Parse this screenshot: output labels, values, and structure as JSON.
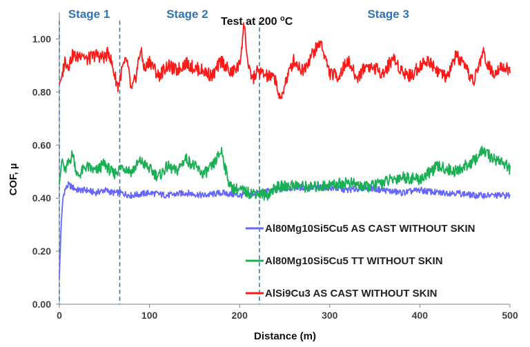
{
  "chart_data": {
    "type": "line",
    "title": "Test at 200 °C",
    "title_text": "Test at 200 ",
    "title_superscript": "o",
    "title_unit": "C",
    "xlabel": "Distance (m)",
    "ylabel": "COF, µ",
    "xlim": [
      0,
      500
    ],
    "ylim": [
      0,
      1.1
    ],
    "x_ticks": [
      0,
      100,
      200,
      300,
      400,
      500
    ],
    "x_tick_labels": [
      "0",
      "100",
      "200",
      "300",
      "400",
      "500"
    ],
    "y_ticks": [
      0,
      0.2,
      0.4,
      0.6,
      0.8,
      1.0
    ],
    "y_tick_labels": [
      "0.00",
      "0.20",
      "0.40",
      "0.60",
      "0.80",
      "1.00"
    ],
    "grid": false,
    "legend_position": "lower-right",
    "stage_boundaries": [
      0,
      67,
      222
    ],
    "stage_labels": [
      {
        "text": "Stage 1",
        "x": 33
      },
      {
        "text": "Stage 2",
        "x": 142
      },
      {
        "text": "Stage 3",
        "x": 365
      }
    ],
    "stage_color": "#2e74b5",
    "series": [
      {
        "name": "Al80Mg10Si5Cu5 AS CAST WITHOUT SKIN",
        "color": "#6666ff",
        "x": [
          0,
          2,
          4,
          6,
          10,
          15,
          20,
          30,
          40,
          50,
          60,
          67,
          80,
          100,
          120,
          140,
          160,
          180,
          200,
          220,
          240,
          260,
          280,
          300,
          320,
          340,
          360,
          380,
          400,
          420,
          440,
          460,
          480,
          500
        ],
        "y": [
          0.1,
          0.3,
          0.4,
          0.43,
          0.45,
          0.44,
          0.43,
          0.43,
          0.42,
          0.43,
          0.42,
          0.42,
          0.41,
          0.42,
          0.41,
          0.42,
          0.41,
          0.42,
          0.41,
          0.42,
          0.43,
          0.44,
          0.44,
          0.44,
          0.43,
          0.44,
          0.43,
          0.42,
          0.43,
          0.42,
          0.42,
          0.41,
          0.41,
          0.41
        ]
      },
      {
        "name": "Al80Mg10Si5Cu5 TT WITHOUT SKIN",
        "color": "#1aaf54",
        "x": [
          0,
          3,
          6,
          10,
          15,
          20,
          30,
          40,
          50,
          60,
          70,
          80,
          90,
          100,
          110,
          120,
          130,
          140,
          150,
          160,
          170,
          180,
          185,
          190,
          200,
          210,
          220,
          230,
          240,
          260,
          280,
          300,
          320,
          340,
          360,
          380,
          400,
          420,
          440,
          460,
          470,
          480,
          490,
          500
        ],
        "y": [
          0.45,
          0.55,
          0.5,
          0.53,
          0.57,
          0.48,
          0.52,
          0.5,
          0.53,
          0.49,
          0.52,
          0.5,
          0.54,
          0.51,
          0.48,
          0.52,
          0.5,
          0.55,
          0.52,
          0.49,
          0.52,
          0.58,
          0.5,
          0.44,
          0.43,
          0.42,
          0.42,
          0.41,
          0.44,
          0.45,
          0.44,
          0.45,
          0.46,
          0.44,
          0.46,
          0.48,
          0.47,
          0.52,
          0.5,
          0.54,
          0.58,
          0.55,
          0.54,
          0.51
        ]
      },
      {
        "name": "AlSi9Cu3 AS CAST WITHOUT SKIN",
        "color": "#ff1a1a",
        "x": [
          0,
          3,
          6,
          10,
          15,
          20,
          25,
          30,
          40,
          50,
          55,
          60,
          65,
          70,
          75,
          80,
          85,
          90,
          95,
          100,
          110,
          120,
          130,
          140,
          150,
          160,
          170,
          180,
          190,
          200,
          205,
          210,
          215,
          220,
          230,
          240,
          245,
          250,
          260,
          270,
          280,
          290,
          300,
          310,
          320,
          330,
          340,
          350,
          360,
          370,
          380,
          390,
          400,
          410,
          420,
          430,
          440,
          450,
          460,
          470,
          480,
          490,
          500
        ],
        "y": [
          0.83,
          0.86,
          0.92,
          0.9,
          0.94,
          0.93,
          0.95,
          0.92,
          0.94,
          0.93,
          0.95,
          0.88,
          0.82,
          0.89,
          0.92,
          0.8,
          0.86,
          0.96,
          0.88,
          0.92,
          0.86,
          0.9,
          0.88,
          0.91,
          0.89,
          0.88,
          0.86,
          0.92,
          0.87,
          0.9,
          1.06,
          0.88,
          0.85,
          0.88,
          0.86,
          0.85,
          0.76,
          0.83,
          0.92,
          0.88,
          0.94,
          0.99,
          0.87,
          0.86,
          0.92,
          0.85,
          0.9,
          0.89,
          0.87,
          0.93,
          0.88,
          0.86,
          0.9,
          0.92,
          0.88,
          0.85,
          0.94,
          0.89,
          0.84,
          0.95,
          0.87,
          0.9,
          0.88
        ]
      }
    ]
  }
}
